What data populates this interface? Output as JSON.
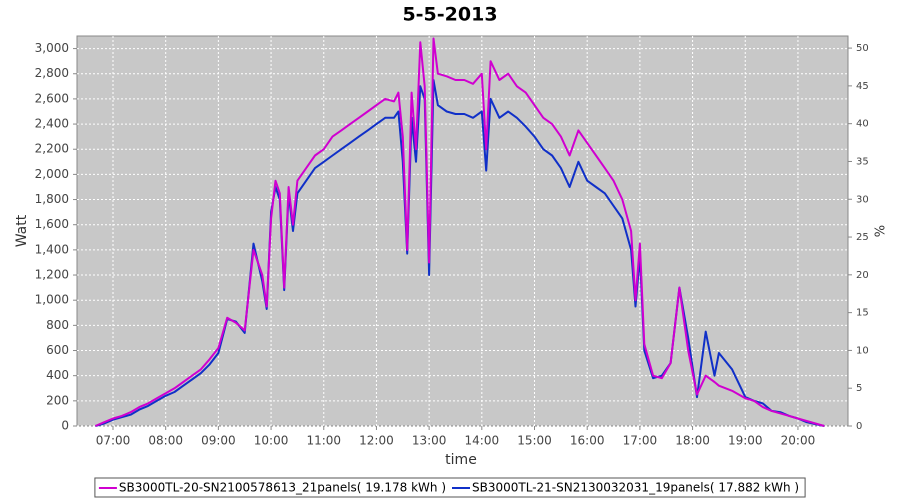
{
  "chart_data": {
    "type": "line",
    "title": "5-5-2013",
    "xlabel": "time",
    "ylabel": "Watt",
    "y2label": "%",
    "x": [
      "06:40",
      "06:50",
      "07:00",
      "07:10",
      "07:20",
      "07:30",
      "07:40",
      "07:50",
      "08:00",
      "08:10",
      "08:20",
      "08:30",
      "08:40",
      "08:50",
      "09:00",
      "09:10",
      "09:20",
      "09:30",
      "09:40",
      "09:50",
      "09:55",
      "10:00",
      "10:05",
      "10:10",
      "10:15",
      "10:20",
      "10:25",
      "10:30",
      "10:40",
      "10:50",
      "11:00",
      "11:10",
      "11:20",
      "11:30",
      "11:40",
      "11:50",
      "12:00",
      "12:10",
      "12:20",
      "12:25",
      "12:30",
      "12:35",
      "12:40",
      "12:45",
      "12:50",
      "12:55",
      "13:00",
      "13:05",
      "13:10",
      "13:20",
      "13:30",
      "13:40",
      "13:50",
      "14:00",
      "14:05",
      "14:10",
      "14:20",
      "14:30",
      "14:40",
      "14:50",
      "15:00",
      "15:10",
      "15:20",
      "15:30",
      "15:40",
      "15:50",
      "16:00",
      "16:10",
      "16:20",
      "16:30",
      "16:40",
      "16:50",
      "16:55",
      "17:00",
      "17:05",
      "17:15",
      "17:25",
      "17:35",
      "17:45",
      "17:55",
      "18:05",
      "18:15",
      "18:25",
      "18:30",
      "18:45",
      "19:00",
      "19:10",
      "19:20",
      "19:30",
      "19:40",
      "19:50",
      "20:00",
      "20:10",
      "20:20",
      "20:30"
    ],
    "series": [
      {
        "name": "SB3000TL-20-SN2100578613_21panels( 19.178 kWh )",
        "color": "#d000d0",
        "values": [
          0,
          30,
          60,
          80,
          110,
          150,
          180,
          220,
          260,
          300,
          350,
          400,
          450,
          530,
          620,
          860,
          820,
          760,
          1400,
          1200,
          950,
          1650,
          1950,
          1850,
          1100,
          1900,
          1600,
          1950,
          2050,
          2150,
          2200,
          2300,
          2350,
          2400,
          2450,
          2500,
          2550,
          2600,
          2580,
          2650,
          2300,
          1400,
          2650,
          2200,
          3050,
          2700,
          1300,
          3080,
          2800,
          2780,
          2750,
          2750,
          2720,
          2800,
          2200,
          2900,
          2750,
          2800,
          2700,
          2650,
          2550,
          2450,
          2400,
          2300,
          2150,
          2350,
          2250,
          2150,
          2050,
          1950,
          1800,
          1550,
          1000,
          1450,
          650,
          400,
          380,
          500,
          1100,
          600,
          250,
          400,
          350,
          320,
          280,
          220,
          200,
          150,
          120,
          100,
          80,
          60,
          40,
          20,
          0
        ]
      },
      {
        "name": "SB3000TL-21-SN2130032031_19panels( 17.882 kWh )",
        "color": "#1030c8",
        "values": [
          0,
          20,
          50,
          70,
          90,
          130,
          160,
          200,
          240,
          270,
          320,
          370,
          420,
          490,
          580,
          850,
          830,
          740,
          1450,
          1150,
          930,
          1700,
          1900,
          1800,
          1080,
          1850,
          1550,
          1850,
          1950,
          2050,
          2100,
          2150,
          2200,
          2250,
          2300,
          2350,
          2400,
          2450,
          2450,
          2500,
          2100,
          1370,
          2450,
          2100,
          2700,
          2600,
          1200,
          2750,
          2550,
          2500,
          2480,
          2480,
          2450,
          2500,
          2030,
          2600,
          2450,
          2500,
          2450,
          2380,
          2300,
          2200,
          2150,
          2050,
          1900,
          2100,
          1950,
          1900,
          1850,
          1750,
          1650,
          1400,
          950,
          1350,
          600,
          380,
          400,
          500,
          1100,
          700,
          230,
          750,
          400,
          580,
          450,
          230,
          200,
          180,
          120,
          110,
          80,
          60,
          30,
          15,
          0
        ]
      }
    ],
    "xlim": [
      "06:19",
      "20:57"
    ],
    "xticks": [
      "07:00",
      "08:00",
      "09:00",
      "10:00",
      "11:00",
      "12:00",
      "13:00",
      "14:00",
      "15:00",
      "16:00",
      "17:00",
      "18:00",
      "19:00",
      "20:00"
    ],
    "ylim": [
      0,
      3100
    ],
    "yticks": [
      0,
      200,
      400,
      600,
      800,
      {
        "value": 1000,
        "label": "1,000"
      },
      {
        "value": 1200,
        "label": "1,200"
      },
      {
        "value": 1400,
        "label": "1,400"
      },
      {
        "value": 1600,
        "label": "1,600"
      },
      {
        "value": 1800,
        "label": "1,800"
      },
      {
        "value": 2000,
        "label": "2,000"
      },
      {
        "value": 2200,
        "label": "2,200"
      },
      {
        "value": 2400,
        "label": "2,400"
      },
      {
        "value": 2600,
        "label": "2,600"
      },
      {
        "value": 2800,
        "label": "2,800"
      },
      {
        "value": 3000,
        "label": "3,000"
      }
    ],
    "y2lim": [
      0,
      51.6
    ],
    "y2ticks": [
      0,
      5,
      10,
      15,
      20,
      25,
      30,
      35,
      40,
      45,
      50
    ],
    "grid": true,
    "legend": "bottom"
  }
}
